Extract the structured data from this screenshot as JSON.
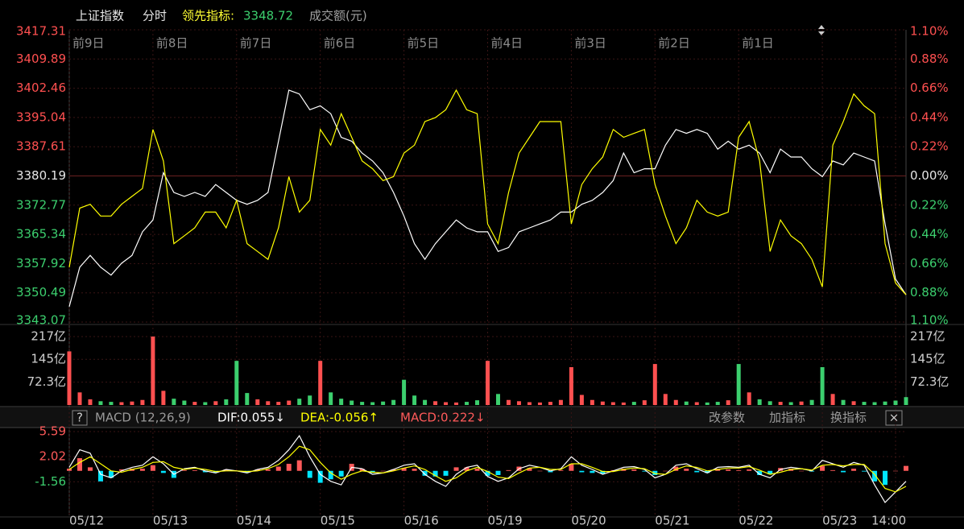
{
  "header": {
    "title": "上证指数",
    "period": "分时",
    "indicator_label": "领先指标:",
    "indicator_value": 3348.72,
    "volume_label": "成交额(元)"
  },
  "chart_data": [
    {
      "type": "line",
      "x": [
        0,
        0.125,
        0.25,
        0.375,
        0.5,
        0.625,
        0.75,
        0.875,
        1,
        1.125,
        1.25,
        1.375,
        1.5,
        1.625,
        1.75,
        1.875,
        2,
        2.125,
        2.25,
        2.375,
        2.5,
        2.625,
        2.75,
        2.875,
        3,
        3.125,
        3.25,
        3.375,
        3.5,
        3.625,
        3.75,
        3.875,
        4,
        4.125,
        4.25,
        4.375,
        4.5,
        4.625,
        4.75,
        4.875,
        5,
        5.125,
        5.25,
        5.375,
        5.5,
        5.625,
        5.75,
        5.875,
        6,
        6.125,
        6.25,
        6.375,
        6.5,
        6.625,
        6.75,
        6.875,
        7,
        7.125,
        7.25,
        7.375,
        7.5,
        7.625,
        7.75,
        7.875,
        8,
        8.125,
        8.25,
        8.375,
        8.5,
        8.625,
        8.75,
        8.875,
        9,
        9.125,
        9.25,
        9.375,
        9.5,
        9.625,
        9.75,
        9.875,
        10
      ],
      "series": [
        {
          "color": "#ffffff",
          "values": [
            3347,
            3357,
            3360,
            3357,
            3355,
            3358,
            3360,
            3366,
            3369,
            3381,
            3376,
            3375,
            3376,
            3375,
            3378,
            3376,
            3374,
            3373,
            3374,
            3376,
            3389,
            3402,
            3401,
            3397,
            3398,
            3396,
            3390,
            3389,
            3386,
            3384,
            3381,
            3376,
            3370,
            3363,
            3359,
            3363,
            3366,
            3369,
            3367,
            3366,
            3366,
            3361,
            3362,
            3366,
            3367,
            3368,
            3369,
            3371,
            3371,
            3373,
            3374,
            3376,
            3379,
            3386,
            3381,
            3382,
            3382,
            3388,
            3392,
            3391,
            3392,
            3391,
            3387,
            3389,
            3387,
            3388,
            3386,
            3381,
            3387,
            3385,
            3385,
            3382,
            3380,
            3384,
            3383,
            3386,
            3385,
            3384,
            3368,
            3354,
            3350
          ]
        },
        {
          "color": "#ffff00",
          "values": [
            3357,
            3372,
            3373,
            3370,
            3370,
            3373,
            3375,
            3377,
            3392,
            3384,
            3363,
            3365,
            3367,
            3371,
            3371,
            3367,
            3374,
            3363,
            3361,
            3359,
            3367,
            3380,
            3371,
            3374,
            3392,
            3388,
            3396,
            3390,
            3384,
            3382,
            3379,
            3380,
            3386,
            3388,
            3394,
            3395,
            3397,
            3402,
            3397,
            3396,
            3368,
            3363,
            3376,
            3386,
            3390,
            3394,
            3394,
            3394,
            3368,
            3378,
            3382,
            3385,
            3392,
            3390,
            3391,
            3392,
            3378,
            3370,
            3363,
            3367,
            3374,
            3371,
            3370,
            3371,
            3390,
            3394,
            3384,
            3361,
            3369,
            3365,
            3363,
            3359,
            3352,
            3388,
            3394,
            3401,
            3398,
            3396,
            3363,
            3353,
            3350
          ]
        }
      ],
      "xlim": [
        0,
        10
      ],
      "xticks": [
        {
          "value": 0,
          "label": "05/12"
        },
        {
          "value": 1,
          "label": "05/13"
        },
        {
          "value": 2,
          "label": "05/14"
        },
        {
          "value": 3,
          "label": "05/15"
        },
        {
          "value": 4,
          "label": "05/16"
        },
        {
          "value": 5,
          "label": "05/19"
        },
        {
          "value": 6,
          "label": "05/20"
        },
        {
          "value": 7,
          "label": "05/21"
        },
        {
          "value": 8,
          "label": "05/22"
        },
        {
          "value": 9,
          "label": "05/23"
        },
        {
          "value": 9.875,
          "label": "14:00"
        }
      ],
      "day_labels": [
        "前9日",
        "前8日",
        "前7日",
        "前6日",
        "前5日",
        "前4日",
        "前3日",
        "前2日",
        "前1日"
      ],
      "ylim": [
        3343.07,
        3417.31
      ],
      "yticks": [
        3417.31,
        3409.89,
        3402.46,
        3395.04,
        3387.61,
        3380.19,
        3372.77,
        3365.34,
        3357.92,
        3350.49,
        3343.07
      ],
      "y2lim": [
        -1.1,
        1.1
      ],
      "y2ticks": [
        {
          "value": 1.1,
          "label": "1.10%"
        },
        {
          "value": 0.88,
          "label": "0.88%"
        },
        {
          "value": 0.66,
          "label": "0.66%"
        },
        {
          "value": 0.44,
          "label": "0.44%"
        },
        {
          "value": 0.22,
          "label": "0.22%"
        },
        {
          "value": 0,
          "label": "0.00%"
        },
        {
          "value": -0.22,
          "label": "0.22%"
        },
        {
          "value": -0.44,
          "label": "0.44%"
        },
        {
          "value": -0.66,
          "label": "0.66%"
        },
        {
          "value": -0.88,
          "label": "0.88%"
        },
        {
          "value": -1.1,
          "label": "1.10%"
        }
      ],
      "base": 3380.19,
      "grid": true,
      "up_color": "#ff5050",
      "down_color": "#3ccf6e"
    },
    {
      "type": "bar",
      "x": [
        0,
        0.125,
        0.25,
        0.375,
        0.5,
        0.625,
        0.75,
        0.875,
        1,
        1.125,
        1.25,
        1.375,
        1.5,
        1.625,
        1.75,
        1.875,
        2,
        2.125,
        2.25,
        2.375,
        2.5,
        2.625,
        2.75,
        2.875,
        3,
        3.125,
        3.25,
        3.375,
        3.5,
        3.625,
        3.75,
        3.875,
        4,
        4.125,
        4.25,
        4.375,
        4.5,
        4.625,
        4.75,
        4.875,
        5,
        5.125,
        5.25,
        5.375,
        5.5,
        5.625,
        5.75,
        5.875,
        6,
        6.125,
        6.25,
        6.375,
        6.5,
        6.625,
        6.75,
        6.875,
        7,
        7.125,
        7.25,
        7.375,
        7.5,
        7.625,
        7.75,
        7.875,
        8,
        8.125,
        8.25,
        8.375,
        8.5,
        8.625,
        8.75,
        8.875,
        9,
        9.125,
        9.25,
        9.375,
        9.5,
        9.625,
        9.75,
        9.875,
        10
      ],
      "values": [
        170,
        40,
        18,
        12,
        10,
        9,
        11,
        16,
        217,
        45,
        20,
        14,
        10,
        9,
        12,
        18,
        140,
        38,
        18,
        12,
        10,
        14,
        20,
        30,
        140,
        40,
        20,
        14,
        10,
        9,
        11,
        16,
        80,
        30,
        16,
        12,
        9,
        8,
        10,
        15,
        140,
        35,
        16,
        12,
        9,
        8,
        10,
        16,
        120,
        32,
        16,
        11,
        9,
        8,
        10,
        15,
        130,
        35,
        16,
        11,
        9,
        8,
        10,
        15,
        130,
        40,
        18,
        12,
        10,
        9,
        11,
        16,
        120,
        35,
        16,
        12,
        10,
        9,
        11,
        14,
        25
      ],
      "ylim": [
        0,
        217
      ],
      "yticks": [
        {
          "value": 217,
          "label": "217亿"
        },
        {
          "value": 145,
          "label": "145亿"
        },
        {
          "value": 72.3,
          "label": "72.3亿"
        }
      ]
    },
    {
      "type": "macd",
      "help": "?",
      "title": "MACD (12,26,9)",
      "readouts": [
        "DIF:0.055↓",
        "DEA:-0.056↑",
        "MACD:0.222↓"
      ],
      "buttons": [
        "改参数",
        "加指标",
        "换指标"
      ],
      "close": "×",
      "x": [
        0,
        0.125,
        0.25,
        0.375,
        0.5,
        0.625,
        0.75,
        0.875,
        1,
        1.125,
        1.25,
        1.375,
        1.5,
        1.625,
        1.75,
        1.875,
        2,
        2.125,
        2.25,
        2.375,
        2.5,
        2.625,
        2.75,
        2.875,
        3,
        3.125,
        3.25,
        3.375,
        3.5,
        3.625,
        3.75,
        3.875,
        4,
        4.125,
        4.25,
        4.375,
        4.5,
        4.625,
        4.75,
        4.875,
        5,
        5.125,
        5.25,
        5.375,
        5.5,
        5.625,
        5.75,
        5.875,
        6,
        6.125,
        6.25,
        6.375,
        6.5,
        6.625,
        6.75,
        6.875,
        7,
        7.125,
        7.25,
        7.375,
        7.5,
        7.625,
        7.75,
        7.875,
        8,
        8.125,
        8.25,
        8.375,
        8.5,
        8.625,
        8.75,
        8.875,
        9,
        9.125,
        9.25,
        9.375,
        9.5,
        9.625,
        9.75,
        9.875,
        10
      ],
      "series": [
        {
          "color": "#ffffff",
          "values": [
            0.5,
            3.0,
            2.5,
            -0.5,
            -1.0,
            0.0,
            0.5,
            0.8,
            2.0,
            1.0,
            -0.5,
            0.3,
            0.5,
            0.0,
            -0.3,
            0.2,
            0.0,
            -0.3,
            0.2,
            0.5,
            1.5,
            3.0,
            5.0,
            2.0,
            -0.5,
            -1.5,
            -2.0,
            0.5,
            0.3,
            -0.5,
            -0.3,
            0.2,
            0.8,
            1.0,
            -0.5,
            -1.5,
            -2.2,
            -0.5,
            0.5,
            0.8,
            -0.8,
            -1.5,
            -1.0,
            0.3,
            0.8,
            0.5,
            0.0,
            0.3,
            2.0,
            0.8,
            0.2,
            -0.5,
            0.0,
            0.5,
            0.6,
            0.2,
            -1.0,
            -0.5,
            0.8,
            1.0,
            0.3,
            -0.3,
            0.5,
            0.6,
            0.5,
            0.8,
            -0.5,
            -1.0,
            0.2,
            0.5,
            0.3,
            0.0,
            1.5,
            1.0,
            0.5,
            1.2,
            0.8,
            -2.0,
            -4.5,
            -3.0,
            -1.5
          ]
        },
        {
          "color": "#ffff00",
          "values": [
            0.2,
            1.2,
            2.0,
            1.0,
            0.0,
            -0.2,
            0.2,
            0.5,
            1.2,
            1.3,
            0.5,
            0.2,
            0.4,
            0.2,
            -0.1,
            0.0,
            0.0,
            -0.1,
            0.0,
            0.3,
            0.9,
            2.0,
            3.5,
            3.0,
            1.2,
            -0.3,
            -1.2,
            -0.5,
            0.0,
            -0.2,
            -0.3,
            0.0,
            0.4,
            0.7,
            0.2,
            -0.7,
            -1.5,
            -1.0,
            0.0,
            0.5,
            -0.1,
            -0.9,
            -1.1,
            -0.3,
            0.4,
            0.5,
            0.2,
            0.2,
            1.0,
            1.0,
            0.5,
            -0.1,
            -0.1,
            0.2,
            0.4,
            0.3,
            -0.4,
            -0.5,
            0.2,
            0.7,
            0.5,
            0.0,
            0.2,
            0.4,
            0.4,
            0.6,
            0.1,
            -0.5,
            -0.2,
            0.2,
            0.3,
            0.1,
            0.8,
            0.9,
            0.7,
            0.9,
            0.9,
            -0.5,
            -2.5,
            -3.0,
            -2.2
          ]
        }
      ],
      "histogram": [
        0.3,
        1.8,
        0.5,
        -1.5,
        -1.0,
        0.2,
        0.3,
        0.3,
        0.8,
        -0.3,
        -1.0,
        0.1,
        0.1,
        -0.2,
        -0.2,
        0.2,
        0.0,
        -0.2,
        0.2,
        0.2,
        0.6,
        1.0,
        1.5,
        -1.0,
        -1.7,
        -1.2,
        -0.8,
        1.0,
        0.3,
        -0.3,
        0.0,
        0.2,
        0.4,
        0.3,
        -0.7,
        -0.8,
        -0.7,
        0.5,
        0.5,
        0.3,
        -0.7,
        -0.6,
        0.1,
        0.6,
        0.4,
        0.0,
        -0.2,
        0.1,
        1.0,
        -0.2,
        -0.3,
        -0.4,
        0.1,
        0.3,
        0.2,
        -0.1,
        -0.6,
        0.0,
        0.6,
        0.3,
        -0.2,
        -0.3,
        0.3,
        0.2,
        0.1,
        0.2,
        -0.6,
        -0.5,
        0.4,
        0.3,
        0.0,
        -0.1,
        0.7,
        0.1,
        -0.2,
        0.3,
        -0.1,
        -1.5,
        -2.0,
        0.0,
        0.7
      ],
      "ylim": [
        -6.33,
        6.16
      ],
      "yticks": [
        5.59,
        2.02,
        -1.56
      ],
      "up_color": "#ff5a5a",
      "down_color": "#00e5ff"
    }
  ]
}
